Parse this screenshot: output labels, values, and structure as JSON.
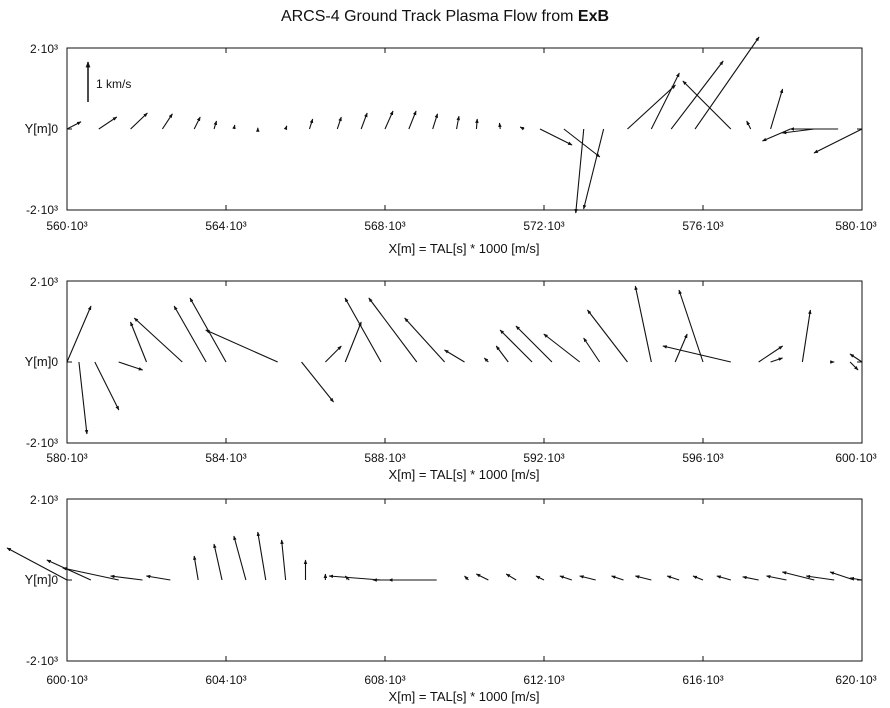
{
  "title_prefix": "ARCS-4 Ground Track Plasma Flow from ",
  "title_bold": "ExB",
  "scale_label": "1 km/s",
  "chart_data": [
    {
      "type": "quiver",
      "xlabel": "X[m] = TAL[s] * 1000 [m/s]",
      "ylabel": "Y[m]",
      "xlim": [
        560000,
        580000
      ],
      "ylim": [
        -2000,
        2000
      ],
      "xticks": [
        "560·10³",
        "564·10³",
        "568·10³",
        "572·10³",
        "576·10³",
        "580·10³"
      ],
      "yticks": [
        "2·10³",
        "0",
        "-2·10³"
      ],
      "scale_arrow": {
        "u": 0,
        "v": 1000
      },
      "vectors": [
        {
          "x": 560000,
          "u": 350,
          "v": 180
        },
        {
          "x": 560800,
          "u": 450,
          "v": 300
        },
        {
          "x": 561600,
          "u": 420,
          "v": 400
        },
        {
          "x": 562400,
          "u": 250,
          "v": 380
        },
        {
          "x": 563200,
          "u": 150,
          "v": 300
        },
        {
          "x": 563700,
          "u": 60,
          "v": 200
        },
        {
          "x": 564200,
          "u": 20,
          "v": 100
        },
        {
          "x": 564800,
          "u": 0,
          "v": 30
        },
        {
          "x": 565500,
          "u": 30,
          "v": 80
        },
        {
          "x": 566100,
          "u": 80,
          "v": 250
        },
        {
          "x": 566800,
          "u": 100,
          "v": 300
        },
        {
          "x": 567400,
          "u": 150,
          "v": 400
        },
        {
          "x": 568000,
          "u": 200,
          "v": 450
        },
        {
          "x": 568600,
          "u": 180,
          "v": 450
        },
        {
          "x": 569200,
          "u": 120,
          "v": 380
        },
        {
          "x": 569800,
          "u": 60,
          "v": 320
        },
        {
          "x": 570300,
          "u": 20,
          "v": 250
        },
        {
          "x": 570900,
          "u": -20,
          "v": 150
        },
        {
          "x": 571500,
          "u": -100,
          "v": 50
        },
        {
          "x": 571900,
          "u": 800,
          "v": -400
        },
        {
          "x": 572500,
          "u": 900,
          "v": -700
        },
        {
          "x": 573000,
          "u": -200,
          "v": -2100
        },
        {
          "x": 573500,
          "u": -500,
          "v": -2000
        },
        {
          "x": 574100,
          "u": 1200,
          "v": 1100
        },
        {
          "x": 574700,
          "u": 700,
          "v": 1400
        },
        {
          "x": 575200,
          "u": 1300,
          "v": 1700
        },
        {
          "x": 575800,
          "u": 1600,
          "v": 2300
        },
        {
          "x": 576700,
          "u": -1200,
          "v": 1200
        },
        {
          "x": 577200,
          "u": -100,
          "v": 200
        },
        {
          "x": 577700,
          "u": 300,
          "v": 1000
        },
        {
          "x": 578200,
          "u": -700,
          "v": -300
        },
        {
          "x": 578800,
          "u": -800,
          "v": -100
        },
        {
          "x": 579400,
          "u": -1200,
          "v": 0
        },
        {
          "x": 580000,
          "u": -1200,
          "v": -600
        }
      ]
    },
    {
      "type": "quiver",
      "xlabel": "X[m] = TAL[s] * 1000 [m/s]",
      "ylabel": "Y[m]",
      "xlim": [
        580000,
        600000
      ],
      "ylim": [
        -2000,
        2000
      ],
      "xticks": [
        "580·10³",
        "584·10³",
        "588·10³",
        "592·10³",
        "596·10³",
        "600·10³"
      ],
      "yticks": [
        "2·10³",
        "0",
        "-2·10³"
      ],
      "vectors": [
        {
          "x": 580000,
          "u": 600,
          "v": 1400
        },
        {
          "x": 580300,
          "u": 200,
          "v": -1800
        },
        {
          "x": 580700,
          "u": 600,
          "v": -1200
        },
        {
          "x": 581300,
          "u": 600,
          "v": -200
        },
        {
          "x": 582000,
          "u": -400,
          "v": 1000
        },
        {
          "x": 582900,
          "u": -1200,
          "v": 1100
        },
        {
          "x": 583500,
          "u": -800,
          "v": 1400
        },
        {
          "x": 584000,
          "u": -900,
          "v": 1600
        },
        {
          "x": 585300,
          "u": -1800,
          "v": 800
        },
        {
          "x": 585900,
          "u": 800,
          "v": -1000
        },
        {
          "x": 586500,
          "u": 400,
          "v": 400
        },
        {
          "x": 587000,
          "u": 400,
          "v": 1000
        },
        {
          "x": 587900,
          "u": -900,
          "v": 1600
        },
        {
          "x": 588800,
          "u": -1200,
          "v": 1600
        },
        {
          "x": 589500,
          "u": -1000,
          "v": 1100
        },
        {
          "x": 590000,
          "u": -500,
          "v": 300
        },
        {
          "x": 590600,
          "u": -100,
          "v": 100
        },
        {
          "x": 591100,
          "u": -300,
          "v": 400
        },
        {
          "x": 591700,
          "u": -800,
          "v": 800
        },
        {
          "x": 592200,
          "u": -900,
          "v": 900
        },
        {
          "x": 592900,
          "u": -900,
          "v": 700
        },
        {
          "x": 593400,
          "u": -400,
          "v": 600
        },
        {
          "x": 594100,
          "u": -1000,
          "v": 1300
        },
        {
          "x": 594700,
          "u": -400,
          "v": 1900
        },
        {
          "x": 595300,
          "u": 300,
          "v": 700
        },
        {
          "x": 596000,
          "u": -600,
          "v": 1800
        },
        {
          "x": 596700,
          "u": -1700,
          "v": 400
        },
        {
          "x": 597400,
          "u": 600,
          "v": 400
        },
        {
          "x": 597700,
          "u": 300,
          "v": 100
        },
        {
          "x": 598500,
          "u": 200,
          "v": 1300
        },
        {
          "x": 599200,
          "u": 100,
          "v": 0
        },
        {
          "x": 599700,
          "u": 200,
          "v": -200
        },
        {
          "x": 600000,
          "u": -300,
          "v": 200
        }
      ]
    },
    {
      "type": "quiver",
      "xlabel": "X[m] = TAL[s] * 1000 [m/s]",
      "ylabel": "Y[m]",
      "xlim": [
        600000,
        620000
      ],
      "ylim": [
        -2000,
        2000
      ],
      "xticks": [
        "600·10³",
        "604·10³",
        "608·10³",
        "612·10³",
        "616·10³",
        "620·10³"
      ],
      "yticks": [
        "2·10³",
        "0",
        "-2·10³"
      ],
      "vectors": [
        {
          "x": 600000,
          "u": -1500,
          "v": 800
        },
        {
          "x": 600600,
          "u": -1100,
          "v": 500
        },
        {
          "x": 601300,
          "u": -1400,
          "v": 300
        },
        {
          "x": 601900,
          "u": -800,
          "v": 100
        },
        {
          "x": 602600,
          "u": -600,
          "v": 100
        },
        {
          "x": 603300,
          "u": -100,
          "v": 600
        },
        {
          "x": 603900,
          "u": -200,
          "v": 900
        },
        {
          "x": 604500,
          "u": -300,
          "v": 1100
        },
        {
          "x": 605000,
          "u": -200,
          "v": 1200
        },
        {
          "x": 605500,
          "u": -100,
          "v": 1000
        },
        {
          "x": 606000,
          "u": 0,
          "v": 500
        },
        {
          "x": 606500,
          "u": 0,
          "v": 150
        },
        {
          "x": 607100,
          "u": -100,
          "v": 100
        },
        {
          "x": 607900,
          "u": -1300,
          "v": 100
        },
        {
          "x": 608600,
          "u": -900,
          "v": 0
        },
        {
          "x": 609300,
          "u": -1200,
          "v": 0
        },
        {
          "x": 610100,
          "u": -100,
          "v": 100
        },
        {
          "x": 610600,
          "u": -300,
          "v": 150
        },
        {
          "x": 611300,
          "u": -250,
          "v": 150
        },
        {
          "x": 612000,
          "u": -200,
          "v": 100
        },
        {
          "x": 612700,
          "u": -300,
          "v": 100
        },
        {
          "x": 613300,
          "u": -400,
          "v": 100
        },
        {
          "x": 614000,
          "u": -300,
          "v": 100
        },
        {
          "x": 614700,
          "u": -400,
          "v": 100
        },
        {
          "x": 615400,
          "u": -300,
          "v": 100
        },
        {
          "x": 616000,
          "u": -250,
          "v": 100
        },
        {
          "x": 616700,
          "u": -350,
          "v": 100
        },
        {
          "x": 617400,
          "u": -400,
          "v": 80
        },
        {
          "x": 618100,
          "u": -500,
          "v": 100
        },
        {
          "x": 618800,
          "u": -800,
          "v": 200
        },
        {
          "x": 619300,
          "u": -700,
          "v": 100
        },
        {
          "x": 619800,
          "u": -600,
          "v": 200
        },
        {
          "x": 620000,
          "u": -300,
          "v": 50
        }
      ]
    }
  ]
}
